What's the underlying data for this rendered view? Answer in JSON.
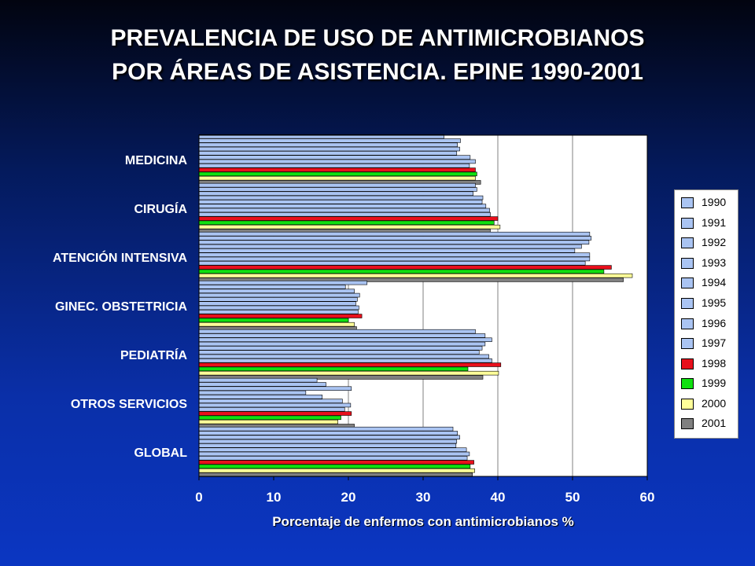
{
  "title_line1": "PREVALENCIA DE USO DE ANTIMICROBIANOS",
  "title_line2": "POR ÁREAS DE ASISTENCIA. EPINE 1990-2001",
  "chart_data": {
    "type": "bar",
    "orientation": "horizontal",
    "title": "PREVALENCIA DE USO DE ANTIMICROBIANOS POR ÁREAS DE ASISTENCIA. EPINE 1990-2001",
    "xlabel": "Porcentaje de enfermos con antimicrobianos %",
    "ylabel": "",
    "xlim": [
      0,
      60
    ],
    "xticks": [
      0,
      10,
      20,
      30,
      40,
      50,
      60
    ],
    "grid": "vertical",
    "legend_position": "right",
    "categories": [
      "MEDICINA",
      "CIRUGÍA",
      "ATENCIÓN INTENSIVA",
      "GINEC. OBSTETRICIA",
      "PEDIATRÍA",
      "OTROS SERVICIOS",
      "GLOBAL"
    ],
    "series": [
      {
        "name": "1990",
        "color": "#aac4f2",
        "values": [
          32.8,
          37.0,
          52.3,
          22.5,
          37.0,
          15.8,
          34.0
        ]
      },
      {
        "name": "1991",
        "color": "#aac4f2",
        "values": [
          35.0,
          37.2,
          52.5,
          19.6,
          38.3,
          17.0,
          34.6
        ]
      },
      {
        "name": "1992",
        "color": "#aac4f2",
        "values": [
          34.6,
          36.7,
          52.2,
          20.8,
          39.2,
          20.4,
          34.9
        ]
      },
      {
        "name": "1993",
        "color": "#aac4f2",
        "values": [
          34.9,
          38.0,
          51.2,
          21.5,
          38.3,
          14.3,
          34.5
        ]
      },
      {
        "name": "1994",
        "color": "#aac4f2",
        "values": [
          34.5,
          37.9,
          50.3,
          21.2,
          37.9,
          16.5,
          34.4
        ]
      },
      {
        "name": "1995",
        "color": "#aac4f2",
        "values": [
          36.3,
          38.4,
          52.3,
          21.0,
          37.5,
          19.2,
          35.8
        ]
      },
      {
        "name": "1996",
        "color": "#aac4f2",
        "values": [
          37.0,
          38.9,
          52.3,
          21.4,
          38.8,
          20.3,
          36.2
        ]
      },
      {
        "name": "1997",
        "color": "#aac4f2",
        "values": [
          36.2,
          39.0,
          51.7,
          21.3,
          39.2,
          19.5,
          35.9
        ]
      },
      {
        "name": "1998",
        "color": "#e8101c",
        "values": [
          37.0,
          40.0,
          55.2,
          21.8,
          40.4,
          20.4,
          36.8
        ]
      },
      {
        "name": "1999",
        "color": "#10e010",
        "values": [
          37.2,
          39.5,
          54.2,
          20.0,
          36.0,
          19.0,
          36.3
        ]
      },
      {
        "name": "2000",
        "color": "#ffff99",
        "values": [
          37.0,
          40.3,
          58.0,
          20.8,
          40.1,
          18.6,
          36.9
        ]
      },
      {
        "name": "2001",
        "color": "#808080",
        "values": [
          37.7,
          39.0,
          56.8,
          21.1,
          38.0,
          20.8,
          36.6
        ]
      }
    ]
  }
}
